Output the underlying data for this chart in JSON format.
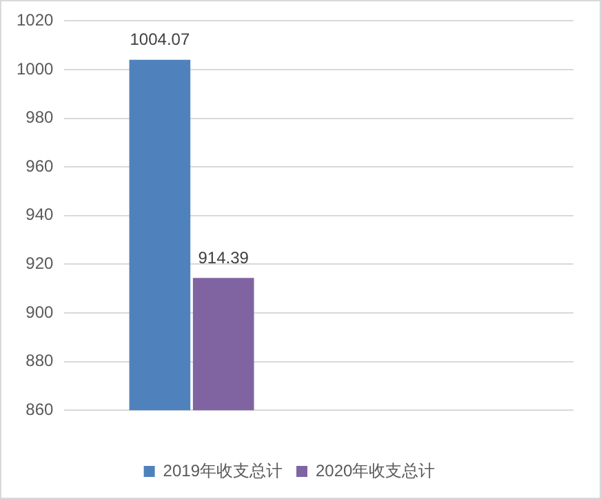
{
  "chart_data": {
    "type": "bar",
    "categories": [
      null,
      null
    ],
    "series": [
      {
        "name": "2019年收支总计",
        "color": "#4f81bd",
        "values": [
          1004.07,
          null
        ]
      },
      {
        "name": "2020年收支总计",
        "color": "#8064a2",
        "values": [
          914.39,
          null
        ]
      }
    ],
    "ylim": [
      860,
      1020
    ],
    "yticks": [
      860,
      880,
      900,
      920,
      940,
      960,
      980,
      1000,
      1020
    ],
    "grid": "y",
    "legend": "bottom",
    "data_labels": true
  }
}
